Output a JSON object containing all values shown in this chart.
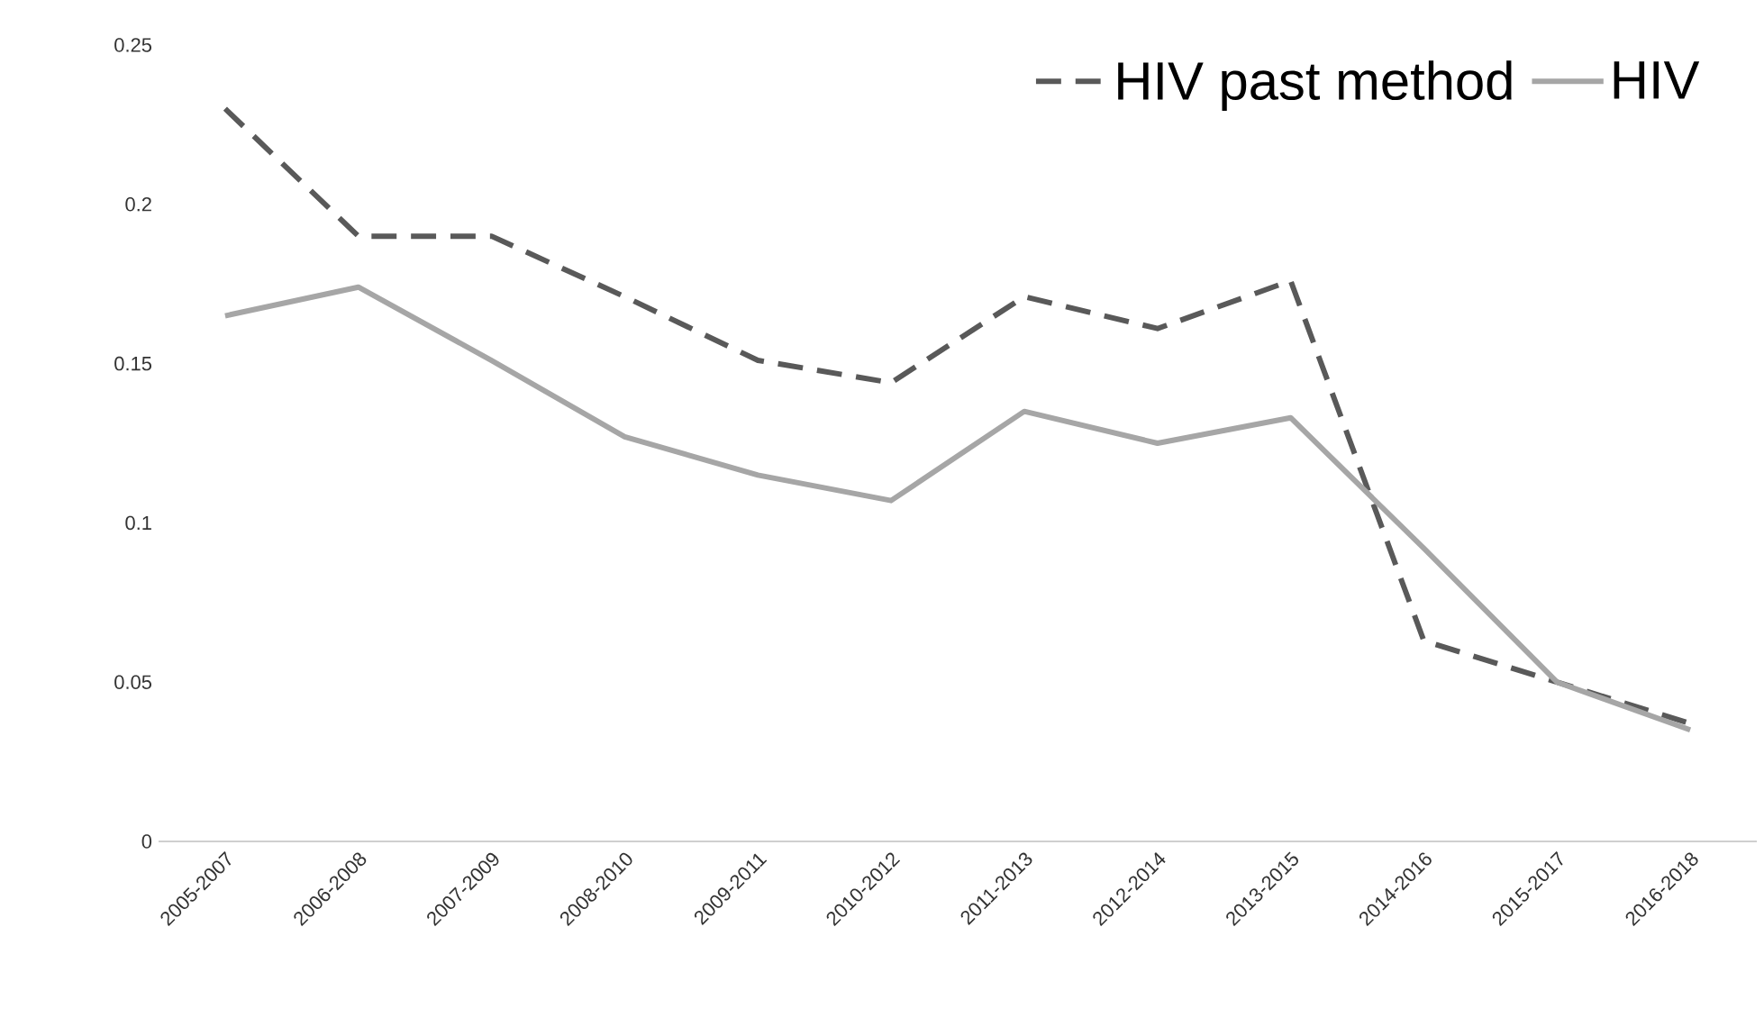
{
  "chart_data": {
    "type": "line",
    "categories": [
      "2005-2007",
      "2006-2008",
      "2007-2009",
      "2008-2010",
      "2009-2011",
      "2010-2012",
      "2011-2013",
      "2012-2014",
      "2013-2015",
      "2014-2016",
      "2015-2017",
      "2016-2018"
    ],
    "series": [
      {
        "name": "HIV past method",
        "color": "#595959",
        "line_style": "dashed",
        "values": [
          0.23,
          0.19,
          0.19,
          0.171,
          0.151,
          0.144,
          0.171,
          0.161,
          0.176,
          0.063,
          0.05,
          0.037
        ]
      },
      {
        "name": "HIV",
        "color": "#a6a6a6",
        "line_style": "solid",
        "values": [
          0.165,
          0.174,
          0.151,
          0.127,
          0.115,
          0.107,
          0.135,
          0.125,
          0.133,
          0.092,
          0.05,
          0.035
        ]
      }
    ],
    "ylim": [
      0,
      0.25
    ],
    "yticks": [
      0,
      0.05,
      0.1,
      0.15,
      0.2,
      0.25
    ],
    "grid": false,
    "legend": "top right",
    "marker": "none"
  }
}
